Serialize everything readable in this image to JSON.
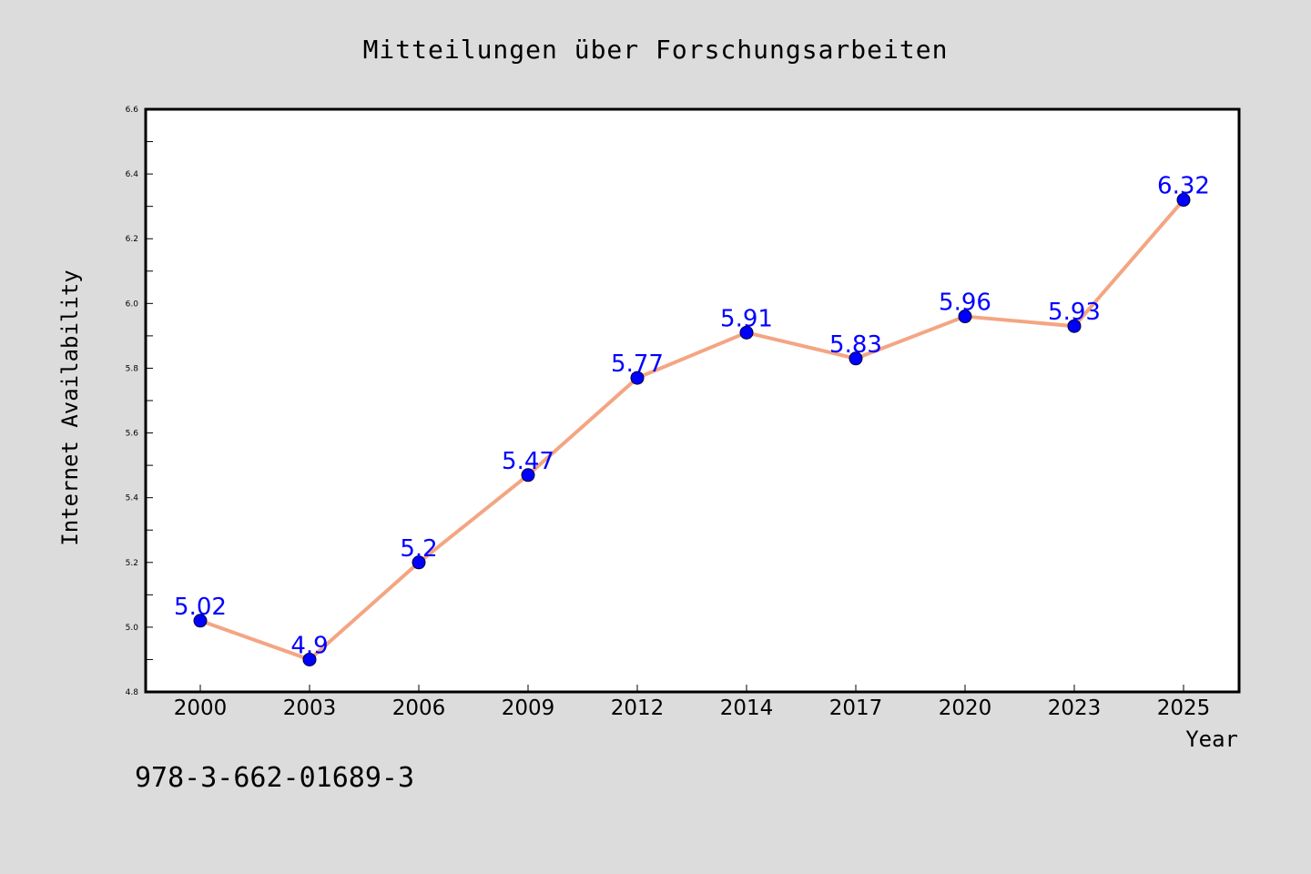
{
  "chart_data": {
    "type": "line",
    "title": "Mitteilungen über Forschungsarbeiten",
    "xlabel": "Year",
    "ylabel": "Internet Availability",
    "categories": [
      "2000",
      "2003",
      "2006",
      "2009",
      "2012",
      "2014",
      "2017",
      "2020",
      "2023",
      "2025"
    ],
    "series": [
      {
        "values": [
          5.02,
          4.9,
          5.2,
          5.47,
          5.77,
          5.91,
          5.83,
          5.96,
          5.93,
          6.32
        ],
        "data_labels": [
          "5.02",
          "4.9",
          "5.2",
          "5.47",
          "5.77",
          "5.91",
          "5.83",
          "5.96",
          "5.93",
          "6.32"
        ],
        "line_color": "#f4a582",
        "marker_color": "#0000ff",
        "label_color": "#0000ff"
      }
    ],
    "ylim": [
      4.8,
      6.6
    ],
    "yticks": [
      "4.8",
      "5.0",
      "5.2",
      "5.4",
      "5.6",
      "5.8",
      "6.0",
      "6.2",
      "6.4",
      "6.6"
    ],
    "grid": false,
    "legend": "none"
  },
  "footer": {
    "isbn": "978-3-662-01689-3"
  },
  "colors": {
    "background": "#dcdcdc",
    "plot_background": "#ffffff"
  }
}
